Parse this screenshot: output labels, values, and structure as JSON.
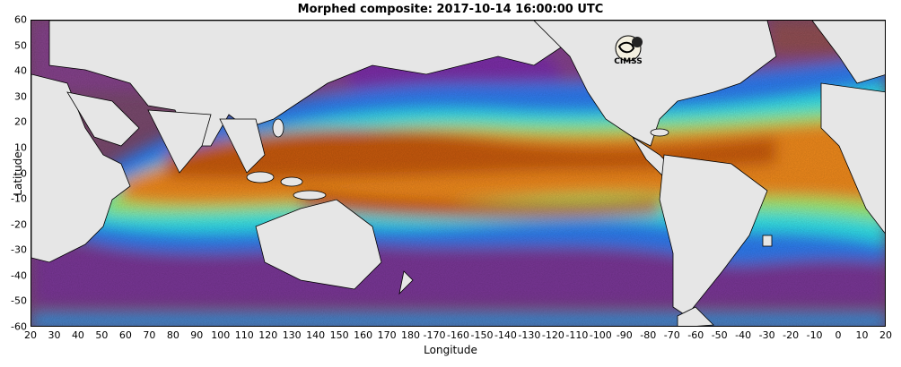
{
  "title": "Morphed composite: 2017-10-14 16:00:00 UTC",
  "xlabel": "Longitude",
  "ylabel": "Latitude",
  "x_ticks": [
    "20",
    "30",
    "40",
    "50",
    "60",
    "70",
    "80",
    "90",
    "100",
    "110",
    "120",
    "130",
    "140",
    "150",
    "160",
    "170",
    "180",
    "-170",
    "-160",
    "-150",
    "-140",
    "-130",
    "-120",
    "-110",
    "-100",
    "-90",
    "-80",
    "-70",
    "-60",
    "-50",
    "-40",
    "-30",
    "-20",
    "-10",
    "0",
    "10",
    "20"
  ],
  "y_ticks": [
    "60",
    "50",
    "40",
    "30",
    "20",
    "10",
    "0",
    "-10",
    "-20",
    "-30",
    "-40",
    "-50",
    "-60"
  ],
  "logo_text": "CIMSS",
  "colors": {
    "land": "#e6e6e6",
    "dry": "#7a4a6e",
    "violet": "#7b2ea8",
    "blue": "#2e7cf0",
    "cyan": "#2ee6e8",
    "green": "#7cf07c",
    "yellow": "#e8e84a",
    "orange": "#f08a1e",
    "deep_orange": "#c85a0a",
    "brown": "#8a4a1e"
  }
}
